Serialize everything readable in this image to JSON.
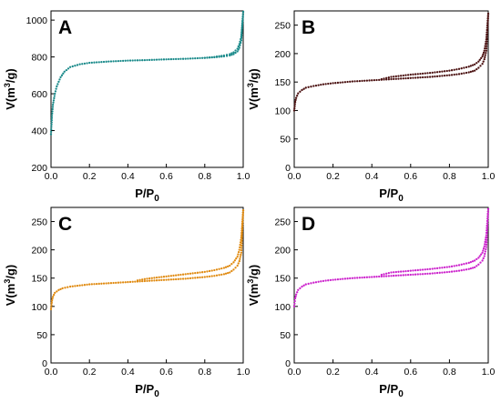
{
  "chart_data": [
    {
      "type": "scatter",
      "panel_label": "A",
      "color": "#1a8a8a",
      "xlabel": "P/P0",
      "ylabel": "V(m3/g)",
      "xlim": [
        0,
        1.0
      ],
      "ylim": [
        200,
        1050
      ],
      "xticks": [
        "0.0",
        "0.2",
        "0.4",
        "0.6",
        "0.8",
        "1.0"
      ],
      "xtick_values": [
        0,
        0.2,
        0.4,
        0.6,
        0.8,
        1.0
      ],
      "yticks": [
        "200",
        "400",
        "600",
        "800",
        "1000"
      ],
      "ytick_values": [
        200,
        400,
        600,
        800,
        1000
      ],
      "series": [
        {
          "x": [
            0.0,
            0.002,
            0.005,
            0.01,
            0.02,
            0.03,
            0.05,
            0.07,
            0.1,
            0.15,
            0.2,
            0.3,
            0.4,
            0.5,
            0.6,
            0.7,
            0.8,
            0.85,
            0.9,
            0.93,
            0.95,
            0.97,
            0.98,
            0.99,
            1.0
          ],
          "y": [
            380,
            420,
            480,
            540,
            600,
            640,
            690,
            720,
            745,
            760,
            768,
            775,
            780,
            783,
            787,
            790,
            795,
            798,
            803,
            808,
            815,
            830,
            850,
            890,
            1045
          ]
        },
        {
          "x": [
            1.0,
            0.99,
            0.98,
            0.97,
            0.95,
            0.93,
            0.9,
            0.85,
            0.8
          ],
          "y": [
            1045,
            910,
            870,
            845,
            825,
            815,
            808,
            800,
            795
          ]
        }
      ]
    },
    {
      "type": "scatter",
      "panel_label": "B",
      "color": "#4a1010",
      "xlabel": "P/P0",
      "ylabel": "V(m3/g)",
      "xlim": [
        0,
        1.0
      ],
      "ylim": [
        0,
        275
      ],
      "xticks": [
        "0.0",
        "0.2",
        "0.4",
        "0.6",
        "0.8",
        "1.0"
      ],
      "xtick_values": [
        0,
        0.2,
        0.4,
        0.6,
        0.8,
        1.0
      ],
      "yticks": [
        "0",
        "50",
        "100",
        "150",
        "200",
        "250"
      ],
      "ytick_values": [
        0,
        50,
        100,
        150,
        200,
        250
      ],
      "series": [
        {
          "x": [
            0.0,
            0.005,
            0.01,
            0.02,
            0.04,
            0.06,
            0.1,
            0.15,
            0.2,
            0.3,
            0.4,
            0.5,
            0.6,
            0.7,
            0.8,
            0.85,
            0.9,
            0.93,
            0.95,
            0.97,
            0.98,
            0.99,
            1.0
          ],
          "y": [
            100,
            115,
            122,
            130,
            136,
            140,
            143,
            146,
            148,
            151,
            153,
            155,
            157,
            159,
            162,
            164,
            167,
            170,
            175,
            182,
            190,
            205,
            270
          ]
        },
        {
          "x": [
            1.0,
            0.99,
            0.98,
            0.97,
            0.95,
            0.93,
            0.9,
            0.85,
            0.8,
            0.7,
            0.6,
            0.5,
            0.45
          ],
          "y": [
            270,
            225,
            205,
            195,
            186,
            181,
            177,
            173,
            170,
            166,
            163,
            159,
            155
          ]
        }
      ]
    },
    {
      "type": "scatter",
      "panel_label": "C",
      "color": "#e08a10",
      "xlabel": "P/P0",
      "ylabel": "V(m3/g)",
      "xlim": [
        0,
        1.0
      ],
      "ylim": [
        0,
        275
      ],
      "xticks": [
        "0.0",
        "0.2",
        "0.4",
        "0.6",
        "0.8",
        "1.0"
      ],
      "xtick_values": [
        0,
        0.2,
        0.4,
        0.6,
        0.8,
        1.0
      ],
      "yticks": [
        "0",
        "50",
        "100",
        "150",
        "200",
        "250"
      ],
      "ytick_values": [
        0,
        50,
        100,
        150,
        200,
        250
      ],
      "series": [
        {
          "x": [
            0.0,
            0.005,
            0.01,
            0.02,
            0.04,
            0.06,
            0.1,
            0.15,
            0.2,
            0.3,
            0.4,
            0.5,
            0.6,
            0.7,
            0.8,
            0.85,
            0.9,
            0.93,
            0.95,
            0.97,
            0.98,
            0.99,
            1.0
          ],
          "y": [
            95,
            110,
            117,
            124,
            129,
            132,
            135,
            137,
            139,
            141,
            143,
            145,
            147,
            149,
            152,
            154,
            157,
            160,
            165,
            172,
            180,
            195,
            270
          ]
        },
        {
          "x": [
            1.0,
            0.99,
            0.98,
            0.97,
            0.95,
            0.93,
            0.9,
            0.85,
            0.8,
            0.7,
            0.6,
            0.5,
            0.45
          ],
          "y": [
            270,
            222,
            200,
            188,
            178,
            172,
            168,
            164,
            161,
            157,
            153,
            149,
            146
          ]
        }
      ]
    },
    {
      "type": "scatter",
      "panel_label": "D",
      "color": "#cc22cc",
      "xlabel": "P/P0",
      "ylabel": "V(m3/g)",
      "xlim": [
        0,
        1.0
      ],
      "ylim": [
        0,
        275
      ],
      "xticks": [
        "0.0",
        "0.2",
        "0.4",
        "0.6",
        "0.8",
        "1.0"
      ],
      "xtick_values": [
        0,
        0.2,
        0.4,
        0.6,
        0.8,
        1.0
      ],
      "yticks": [
        "0",
        "50",
        "100",
        "150",
        "200",
        "250"
      ],
      "ytick_values": [
        0,
        50,
        100,
        150,
        200,
        250
      ],
      "series": [
        {
          "x": [
            0.0,
            0.005,
            0.01,
            0.02,
            0.04,
            0.06,
            0.1,
            0.15,
            0.2,
            0.3,
            0.4,
            0.5,
            0.6,
            0.7,
            0.8,
            0.85,
            0.9,
            0.93,
            0.95,
            0.97,
            0.98,
            0.99,
            1.0
          ],
          "y": [
            100,
            114,
            121,
            129,
            135,
            139,
            142,
            145,
            147,
            150,
            152,
            154,
            156,
            158,
            161,
            163,
            166,
            169,
            174,
            181,
            189,
            205,
            272
          ]
        },
        {
          "x": [
            1.0,
            0.99,
            0.98,
            0.97,
            0.95,
            0.93,
            0.9,
            0.85,
            0.8,
            0.7,
            0.6,
            0.5,
            0.45
          ],
          "y": [
            272,
            226,
            206,
            195,
            186,
            181,
            177,
            173,
            170,
            166,
            163,
            160,
            156
          ]
        }
      ]
    }
  ]
}
